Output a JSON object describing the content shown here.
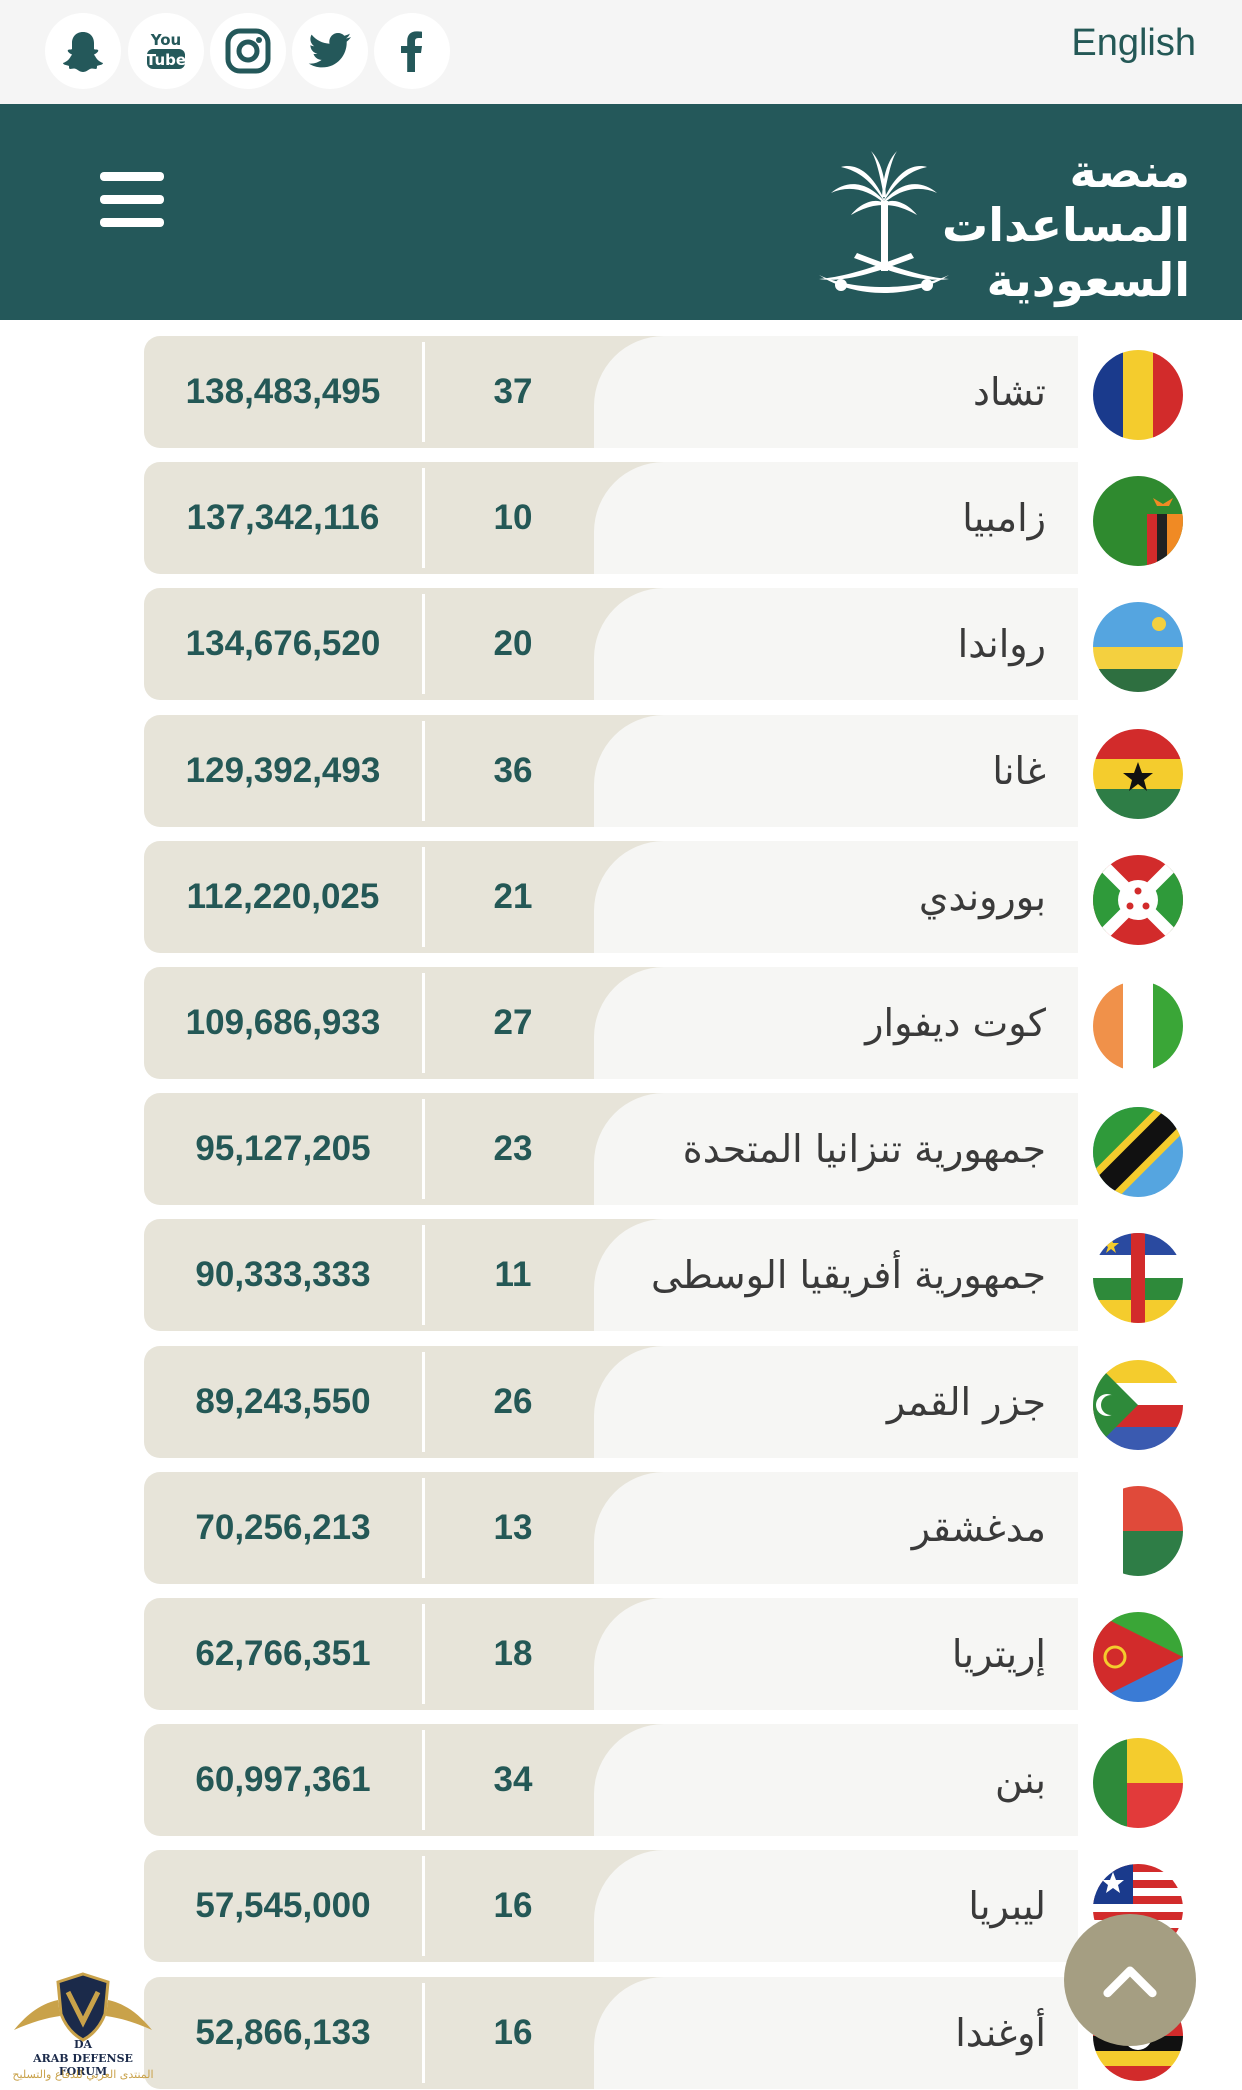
{
  "topbar": {
    "social_icons": [
      "snapchat-icon",
      "youtube-icon",
      "instagram-icon",
      "twitter-icon",
      "facebook-icon"
    ],
    "youtube_text_1": "You",
    "youtube_text_2": "Tube",
    "language_link": "English"
  },
  "header": {
    "logo_line1": "منصة",
    "logo_line2": "المساعدات",
    "logo_line3": "السعودية",
    "bg_color": "#24585a",
    "menu_icon": "hamburger-menu-icon"
  },
  "rows": [
    {
      "country": "تشاد",
      "count": "37",
      "amount": "138,483,495",
      "flag": "chad"
    },
    {
      "country": "زامبيا",
      "count": "10",
      "amount": "137,342,116",
      "flag": "zambia"
    },
    {
      "country": "رواندا",
      "count": "20",
      "amount": "134,676,520",
      "flag": "rwanda"
    },
    {
      "country": "غانا",
      "count": "36",
      "amount": "129,392,493",
      "flag": "ghana"
    },
    {
      "country": "بوروندي",
      "count": "21",
      "amount": "112,220,025",
      "flag": "burundi"
    },
    {
      "country": "كوت ديفوار",
      "count": "27",
      "amount": "109,686,933",
      "flag": "cote-divoire"
    },
    {
      "country": "جمهورية تنزانيا المتحدة",
      "count": "23",
      "amount": "95,127,205",
      "flag": "tanzania"
    },
    {
      "country": "جمهورية أفريقيا الوسطى",
      "count": "11",
      "amount": "90,333,333",
      "flag": "central-african-republic"
    },
    {
      "country": "جزر القمر",
      "count": "26",
      "amount": "89,243,550",
      "flag": "comoros"
    },
    {
      "country": "مدغشقر",
      "count": "13",
      "amount": "70,256,213",
      "flag": "madagascar"
    },
    {
      "country": "إريتريا",
      "count": "18",
      "amount": "62,766,351",
      "flag": "eritrea"
    },
    {
      "country": "بنن",
      "count": "34",
      "amount": "60,997,361",
      "flag": "benin"
    },
    {
      "country": "ليبريا",
      "count": "16",
      "amount": "57,545,000",
      "flag": "liberia"
    },
    {
      "country": "أوغندا",
      "count": "16",
      "amount": "52,866,133",
      "flag": "uganda"
    }
  ],
  "scroll_top_icon": "chevron-up-icon",
  "watermark": {
    "logo_letters": "DA",
    "line1": "ARAB DEFENSE FORUM",
    "line2": "المنتدى العربي للدفاع والتسليح"
  },
  "colors": {
    "accent": "#245856",
    "pill": "#e7e4d9",
    "button": "#a59e82"
  }
}
